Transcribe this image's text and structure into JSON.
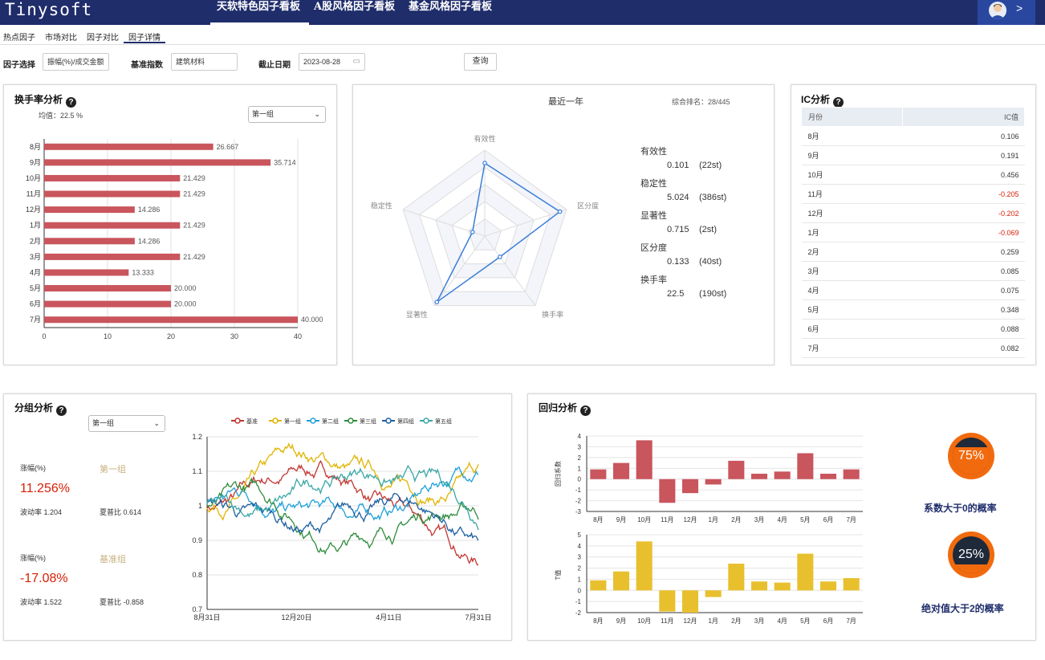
{
  "header": {
    "logo": "Tinysoft",
    "boards": [
      "天软特色因子看板",
      "A股风格因子看板",
      "基金风格因子看板"
    ],
    "active_board": 0,
    "user_chevron": ">"
  },
  "subnav": {
    "tabs": [
      "热点因子",
      "市场对比",
      "因子对比",
      "因子详情"
    ],
    "active": 3
  },
  "filters": {
    "factor_label": "因子选择",
    "factor_value": "振幅(%)/成交金额",
    "index_label": "基准指数",
    "index_value": "建筑材料",
    "date_label": "截止日期",
    "date_value": "2023-08-28",
    "query_label": "查询"
  },
  "turnover": {
    "title": "换手率分析",
    "mean_text": "均值：22.5 %",
    "group_select": "第一组",
    "chart_data": {
      "type": "bar",
      "orientation": "horizontal",
      "categories": [
        "8月",
        "9月",
        "10月",
        "11月",
        "12月",
        "1月",
        "2月",
        "3月",
        "4月",
        "5月",
        "6月",
        "7月"
      ],
      "values": [
        26.667,
        35.714,
        21.429,
        21.429,
        14.286,
        21.429,
        14.286,
        21.429,
        13.333,
        20.0,
        20.0,
        40.0
      ],
      "value_labels": [
        "26.667",
        "35.714",
        "21.429",
        "21.429",
        "14.286",
        "21.429",
        "14.286",
        "21.429",
        "13.333",
        "20.000",
        "20.000",
        "40.000"
      ],
      "xlim": [
        0,
        40
      ],
      "xticks": [
        "0",
        "10",
        "20",
        "30",
        "40"
      ],
      "color": "#c9555d"
    }
  },
  "radar": {
    "title": "最近一年",
    "rank_text": "综合排名：28/445",
    "chart_data": {
      "type": "radar",
      "axes": [
        "有效性",
        "区分度",
        "换手率",
        "显著性",
        "稳定性"
      ],
      "values": [
        0.85,
        0.92,
        0.3,
        0.95,
        0.15
      ],
      "color": "#3b7dd8"
    },
    "metrics": [
      {
        "name": "有效性",
        "value": "0.101",
        "rank": "(22st)"
      },
      {
        "name": "稳定性",
        "value": "5.024",
        "rank": "(386st)"
      },
      {
        "name": "显著性",
        "value": "0.715",
        "rank": "(2st)"
      },
      {
        "name": "区分度",
        "value": "0.133",
        "rank": "(40st)"
      },
      {
        "name": "换手率",
        "value": "22.5",
        "rank": "(190st)"
      }
    ]
  },
  "ic": {
    "title": "IC分析",
    "headers": [
      "月份",
      "IC值"
    ],
    "rows": [
      [
        "8月",
        "0.106"
      ],
      [
        "9月",
        "0.191"
      ],
      [
        "10月",
        "0.456"
      ],
      [
        "11月",
        "-0.205"
      ],
      [
        "12月",
        "-0.202"
      ],
      [
        "1月",
        "-0.069"
      ],
      [
        "2月",
        "0.259"
      ],
      [
        "3月",
        "0.085"
      ],
      [
        "4月",
        "0.075"
      ],
      [
        "5月",
        "0.348"
      ],
      [
        "6月",
        "0.088"
      ],
      [
        "7月",
        "0.082"
      ]
    ],
    "negative_color": "#d81e06"
  },
  "group": {
    "title": "分组分析",
    "group_select": "第一组",
    "stats": [
      {
        "label": "涨幅(%)",
        "name": "第一组",
        "value": "11.256%",
        "vol": "波动率 1.204",
        "sharpe": "夏普比 0.614"
      },
      {
        "label": "涨幅(%)",
        "name": "基准组",
        "value": "-17.08%",
        "vol": "波动率 1.522",
        "sharpe": "夏普比 -0.858"
      }
    ],
    "chart_data": {
      "type": "line",
      "legend": [
        "基准",
        "第一组",
        "第二组",
        "第三组",
        "第四组",
        "第五组"
      ],
      "colors": [
        "#c23531",
        "#e0b400",
        "#1fa0d8",
        "#2e8b3a",
        "#1d5fa0",
        "#3aa6a6"
      ],
      "ylim": [
        0.7,
        1.2
      ],
      "yticks": [
        "0.7",
        "0.8",
        "0.9",
        "1",
        "1.1",
        "1.2"
      ],
      "xticks": [
        "8月31日",
        "12月20日",
        "4月11日",
        "7月31日"
      ],
      "end_values": [
        0.83,
        1.12,
        1.09,
        0.96,
        0.9,
        0.93
      ]
    }
  },
  "regression": {
    "title": "回归分析",
    "chart_data": [
      {
        "type": "bar",
        "ylabel": "回归系数",
        "categories": [
          "8月",
          "9月",
          "10月",
          "11月",
          "12月",
          "1月",
          "2月",
          "3月",
          "4月",
          "5月",
          "6月",
          "7月"
        ],
        "values": [
          0.9,
          1.5,
          3.6,
          -2.2,
          -1.3,
          -0.5,
          1.7,
          0.5,
          0.7,
          2.4,
          0.5,
          0.9
        ],
        "ylim": [
          -3,
          4
        ],
        "yticks": [
          "4",
          "3",
          "2",
          "1",
          "0",
          "-1",
          "-2",
          "-3"
        ],
        "color": "#c9555d"
      },
      {
        "type": "bar",
        "ylabel": "T值",
        "categories": [
          "8月",
          "9月",
          "10月",
          "11月",
          "12月",
          "1月",
          "2月",
          "3月",
          "4月",
          "5月",
          "6月",
          "7月"
        ],
        "values": [
          0.9,
          1.7,
          4.4,
          -1.9,
          -2.0,
          -0.6,
          2.4,
          0.8,
          0.7,
          3.3,
          0.8,
          1.1
        ],
        "ylim": [
          -2,
          5
        ],
        "yticks": [
          "5",
          "4",
          "3",
          "2",
          "1",
          "0",
          "-1",
          "-2"
        ],
        "color": "#e8c02e"
      }
    ],
    "prob1": {
      "value": "75%",
      "label": "系数大于0的概率",
      "fraction": 0.75
    },
    "prob2": {
      "value": "25%",
      "label": "绝对值大于2的概率",
      "fraction": 0.25
    }
  }
}
